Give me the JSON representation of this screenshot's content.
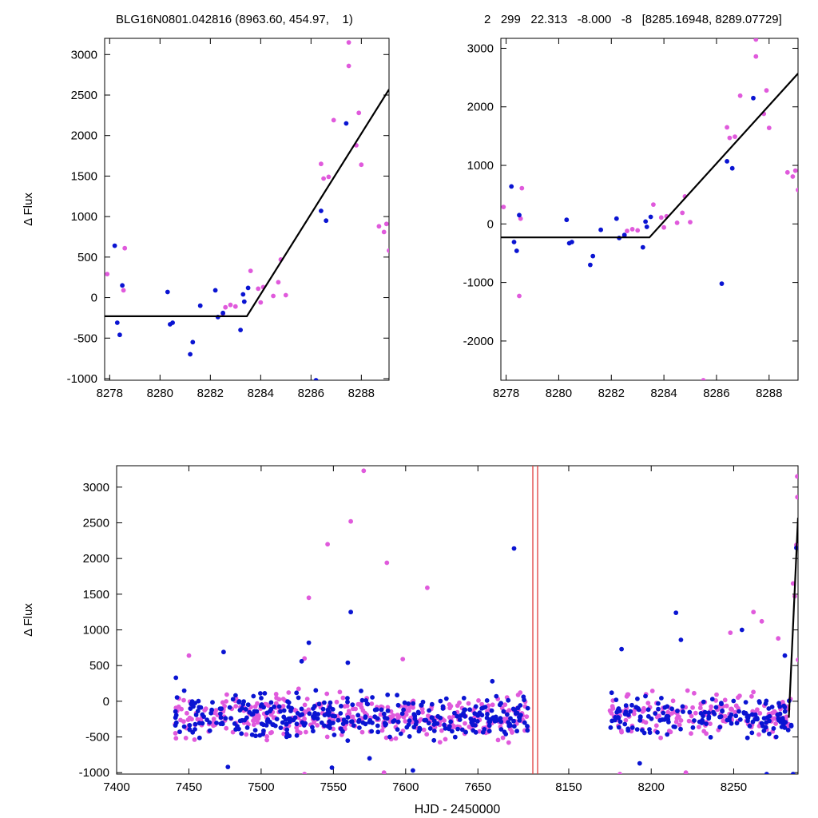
{
  "header": {
    "left": "BLG16N0801.042816 (8963.60, 454.97,    1)",
    "right": "2   299   22.313   -8.000   -8   [8285.16948, 8289.07729]"
  },
  "colors": {
    "series1": "#e05adc",
    "series2": "#0a14d2",
    "model": "#000000",
    "marker": "#e03c3c"
  },
  "chart_data": [
    {
      "id": "zoom-left",
      "type": "scatter",
      "xlabel": "",
      "ylabel": "Δ Flux",
      "xlim": [
        8277.8,
        8289.1
      ],
      "ylim": [
        -1020,
        3200
      ],
      "xticks": [
        8278,
        8280,
        8282,
        8284,
        8286,
        8288
      ],
      "yticks": [
        -1000,
        -500,
        0,
        500,
        1000,
        1500,
        2000,
        2500,
        3000
      ],
      "model": {
        "x": [
          8277.8,
          8283.45,
          8289.1
        ],
        "y": [
          -230,
          -230,
          2570
        ]
      },
      "series": [
        {
          "color": "magenta",
          "points": [
            [
              8277.9,
              290
            ],
            [
              8278.6,
              610
            ],
            [
              8278.55,
              90
            ],
            [
              8282.5,
              -200
            ],
            [
              8282.6,
              -120
            ],
            [
              8282.8,
              -90
            ],
            [
              8283.0,
              -110
            ],
            [
              8283.6,
              330
            ],
            [
              8283.9,
              110
            ],
            [
              8284.0,
              -60
            ],
            [
              8284.1,
              130
            ],
            [
              8284.5,
              20
            ],
            [
              8284.7,
              190
            ],
            [
              8284.8,
              470
            ],
            [
              8285.0,
              30
            ],
            [
              8286.4,
              1650
            ],
            [
              8286.5,
              1470
            ],
            [
              8286.7,
              1490
            ],
            [
              8286.9,
              2190
            ],
            [
              8287.5,
              3150
            ],
            [
              8287.5,
              2860
            ],
            [
              8287.8,
              1880
            ],
            [
              8287.9,
              2280
            ],
            [
              8288.0,
              1640
            ],
            [
              8288.7,
              880
            ],
            [
              8288.9,
              810
            ],
            [
              8289.0,
              910
            ],
            [
              8289.1,
              580
            ]
          ]
        },
        {
          "color": "blue",
          "points": [
            [
              8278.2,
              640
            ],
            [
              8278.3,
              -310
            ],
            [
              8278.4,
              -460
            ],
            [
              8278.5,
              150
            ],
            [
              8280.3,
              70
            ],
            [
              8280.4,
              -330
            ],
            [
              8280.5,
              -310
            ],
            [
              8281.2,
              -700
            ],
            [
              8281.3,
              -550
            ],
            [
              8281.6,
              -100
            ],
            [
              8282.2,
              90
            ],
            [
              8282.3,
              -240
            ],
            [
              8282.5,
              -190
            ],
            [
              8283.2,
              -400
            ],
            [
              8283.3,
              40
            ],
            [
              8283.35,
              -50
            ],
            [
              8283.5,
              120
            ],
            [
              8286.2,
              -1020
            ],
            [
              8286.4,
              1070
            ],
            [
              8286.6,
              950
            ],
            [
              8287.4,
              2150
            ]
          ]
        }
      ]
    },
    {
      "id": "zoom-right",
      "type": "scatter",
      "xlabel": "",
      "ylabel": "",
      "xlim": [
        8277.8,
        8289.1
      ],
      "ylim": [
        -2670,
        3170
      ],
      "xticks": [
        8278,
        8280,
        8282,
        8284,
        8286,
        8288
      ],
      "yticks": [
        -2000,
        -1000,
        0,
        1000,
        2000,
        3000
      ],
      "model": {
        "x": [
          8277.8,
          8283.45,
          8289.1
        ],
        "y": [
          -230,
          -230,
          2570
        ]
      },
      "series": [
        {
          "color": "magenta",
          "points": [
            [
              8277.9,
              290
            ],
            [
              8278.6,
              610
            ],
            [
              8278.55,
              90
            ],
            [
              8278.5,
              -1230
            ],
            [
              8282.5,
              -200
            ],
            [
              8282.6,
              -120
            ],
            [
              8282.8,
              -90
            ],
            [
              8283.0,
              -110
            ],
            [
              8283.6,
              330
            ],
            [
              8283.9,
              110
            ],
            [
              8284.0,
              -60
            ],
            [
              8284.1,
              130
            ],
            [
              8284.5,
              20
            ],
            [
              8284.7,
              190
            ],
            [
              8284.8,
              470
            ],
            [
              8285.0,
              30
            ],
            [
              8285.5,
              -2670
            ],
            [
              8286.4,
              1650
            ],
            [
              8286.5,
              1470
            ],
            [
              8286.7,
              1490
            ],
            [
              8286.9,
              2190
            ],
            [
              8287.5,
              3150
            ],
            [
              8287.5,
              2860
            ],
            [
              8287.8,
              1880
            ],
            [
              8287.9,
              2280
            ],
            [
              8288.0,
              1640
            ],
            [
              8288.7,
              880
            ],
            [
              8288.9,
              810
            ],
            [
              8289.0,
              910
            ],
            [
              8289.1,
              580
            ]
          ]
        },
        {
          "color": "blue",
          "points": [
            [
              8278.2,
              640
            ],
            [
              8278.3,
              -310
            ],
            [
              8278.4,
              -460
            ],
            [
              8278.5,
              150
            ],
            [
              8280.3,
              70
            ],
            [
              8280.4,
              -330
            ],
            [
              8280.5,
              -310
            ],
            [
              8281.2,
              -700
            ],
            [
              8281.3,
              -550
            ],
            [
              8281.6,
              -100
            ],
            [
              8282.2,
              90
            ],
            [
              8282.3,
              -240
            ],
            [
              8282.5,
              -190
            ],
            [
              8283.2,
              -400
            ],
            [
              8283.3,
              40
            ],
            [
              8283.35,
              -50
            ],
            [
              8283.5,
              120
            ],
            [
              8286.2,
              -1020
            ],
            [
              8286.4,
              1070
            ],
            [
              8286.6,
              950
            ],
            [
              8287.4,
              2150
            ]
          ]
        }
      ]
    },
    {
      "id": "full-lightcurve",
      "type": "scatter",
      "xlabel": "HJD - 2450000",
      "ylabel": "Δ Flux",
      "broken_axis": true,
      "segments": [
        {
          "xlim": [
            7400,
            7688
          ]
        },
        {
          "xlim": [
            8135,
            8289
          ]
        }
      ],
      "ylim": [
        -1020,
        3300
      ],
      "xticks": [
        7400,
        7450,
        7500,
        7550,
        7600,
        7650,
        8150,
        8200,
        8250
      ],
      "yticks": [
        -1000,
        -500,
        0,
        500,
        1000,
        1500,
        2000,
        2500,
        3000
      ],
      "baseline": {
        "x_ranges": [
          [
            7440,
            7685
          ],
          [
            8175,
            8285
          ]
        ],
        "y_center": -210,
        "y_spread": 330
      },
      "model": {
        "x": [
          8283.45,
          8289
        ],
        "y": [
          -230,
          2570
        ]
      },
      "series": [
        {
          "color": "magenta",
          "points": [
            [
              7450,
              640
            ],
            [
              7530,
              600
            ],
            [
              7533,
              1450
            ],
            [
              7546,
              2200
            ],
            [
              7562,
              2520
            ],
            [
              7571,
              3230
            ],
            [
              7587,
              1940
            ],
            [
              7615,
              1590
            ],
            [
              7598,
              590
            ],
            [
              7530,
              -1020
            ],
            [
              7585,
              -1000
            ],
            [
              8181,
              -1020
            ],
            [
              8221,
              -1000
            ],
            [
              8248,
              960
            ],
            [
              8262,
              1250
            ],
            [
              8267,
              1120
            ],
            [
              8277,
              880
            ],
            [
              8286,
              1650
            ],
            [
              8287,
              1470
            ],
            [
              8288,
              2190
            ],
            [
              8288.5,
              3150
            ],
            [
              8288.6,
              2860
            ],
            [
              8289,
              580
            ]
          ]
        },
        {
          "color": "blue",
          "points": [
            [
              7441,
              330
            ],
            [
              7474,
              690
            ],
            [
              7477,
              -920
            ],
            [
              7528,
              560
            ],
            [
              7533,
              820
            ],
            [
              7549,
              -930
            ],
            [
              7562,
              1250
            ],
            [
              7560,
              540
            ],
            [
              7575,
              -800
            ],
            [
              7605,
              -970
            ],
            [
              7675,
              2140
            ],
            [
              7660,
              280
            ],
            [
              8182,
              730
            ],
            [
              8193,
              -870
            ],
            [
              8215,
              1240
            ],
            [
              8218,
              860
            ],
            [
              8255,
              1000
            ],
            [
              8270,
              -1020
            ],
            [
              8281,
              640
            ],
            [
              8286,
              -1020
            ],
            [
              8288,
              2150
            ]
          ]
        }
      ]
    }
  ]
}
